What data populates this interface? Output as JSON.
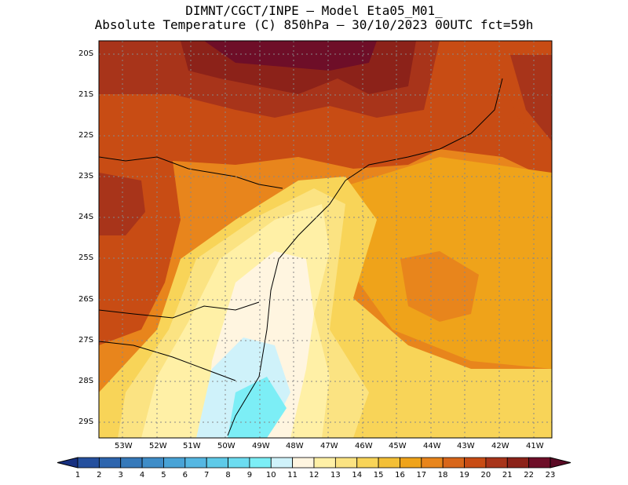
{
  "title": {
    "line1": "DIMNT/CGCT/INPE –  Model Eta05_M01_",
    "line2": "Absolute Temperature (C) 850hPa –  30/10/2023 00UTC fct=59h"
  },
  "axes": {
    "lat_labels": [
      "20S",
      "21S",
      "22S",
      "23S",
      "24S",
      "25S",
      "26S",
      "27S",
      "28S",
      "29S"
    ],
    "lon_labels": [
      "53W",
      "52W",
      "51W",
      "50W",
      "49W",
      "48W",
      "47W",
      "46W",
      "45W",
      "44W",
      "43W",
      "42W",
      "41W"
    ]
  },
  "colorbar": {
    "labels": [
      "1",
      "2",
      "3",
      "4",
      "5",
      "6",
      "7",
      "8",
      "9",
      "10",
      "11",
      "12",
      "13",
      "14",
      "15",
      "16",
      "17",
      "18",
      "19",
      "20",
      "21",
      "22",
      "23"
    ],
    "colors": [
      "#1f3c8c",
      "#25509e",
      "#2d65ae",
      "#3679ba",
      "#3f8dc8",
      "#49a3d6",
      "#55b7e2",
      "#5ecae8",
      "#6cdcf0",
      "#7ceef6",
      "#cff2fa",
      "#fff5e0",
      "#fff0a6",
      "#fbe382",
      "#f8d458",
      "#f3bf36",
      "#efa31a",
      "#e8851c",
      "#d8661a",
      "#c84c14",
      "#a8341a",
      "#8c2219",
      "#6e0e28"
    ],
    "under_color": "#173080",
    "over_color": "#5a0a24"
  }
}
